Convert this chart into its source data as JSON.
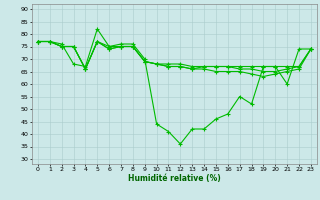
{
  "title": "",
  "xlabel": "Humidité relative (%)",
  "ylabel": "",
  "background_color": "#cce8e8",
  "grid_color": "#aacccc",
  "line_color": "#00bb00",
  "xlim": [
    -0.5,
    23.5
  ],
  "ylim": [
    28,
    92
  ],
  "yticks": [
    30,
    35,
    40,
    45,
    50,
    55,
    60,
    65,
    70,
    75,
    80,
    85,
    90
  ],
  "xticks": [
    0,
    1,
    2,
    3,
    4,
    5,
    6,
    7,
    8,
    9,
    10,
    11,
    12,
    13,
    14,
    15,
    16,
    17,
    18,
    19,
    20,
    21,
    22,
    23
  ],
  "series": [
    [
      77,
      77,
      76,
      68,
      67,
      82,
      75,
      76,
      76,
      70,
      44,
      41,
      36,
      42,
      42,
      46,
      48,
      55,
      52,
      67,
      67,
      60,
      74,
      74
    ],
    [
      77,
      77,
      75,
      75,
      66,
      77,
      75,
      75,
      75,
      69,
      68,
      68,
      68,
      67,
      67,
      67,
      67,
      67,
      67,
      67,
      67,
      67,
      67,
      74
    ],
    [
      77,
      77,
      75,
      75,
      66,
      77,
      74,
      75,
      75,
      69,
      68,
      67,
      67,
      66,
      67,
      67,
      67,
      66,
      66,
      65,
      65,
      66,
      67,
      74
    ],
    [
      77,
      77,
      75,
      75,
      66,
      77,
      74,
      75,
      75,
      69,
      68,
      67,
      67,
      66,
      66,
      65,
      65,
      65,
      64,
      63,
      64,
      65,
      66,
      74
    ]
  ]
}
